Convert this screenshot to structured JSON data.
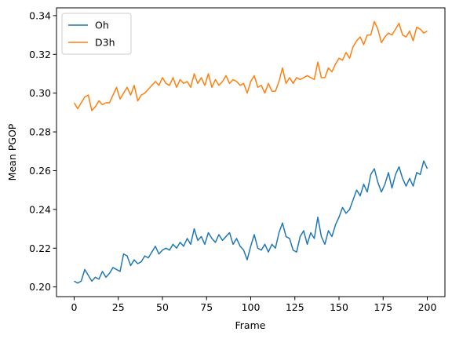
{
  "chart_data": {
    "type": "line",
    "x_label": "Frame",
    "y_label": "Mean PGOP",
    "x": [
      0,
      2,
      4,
      6,
      8,
      10,
      12,
      14,
      16,
      18,
      20,
      22,
      24,
      26,
      28,
      30,
      32,
      34,
      36,
      38,
      40,
      42,
      44,
      46,
      48,
      50,
      52,
      54,
      56,
      58,
      60,
      62,
      64,
      66,
      68,
      70,
      72,
      74,
      76,
      78,
      80,
      82,
      84,
      86,
      88,
      90,
      92,
      94,
      96,
      98,
      100,
      102,
      104,
      106,
      108,
      110,
      112,
      114,
      116,
      118,
      120,
      122,
      124,
      126,
      128,
      130,
      132,
      134,
      136,
      138,
      140,
      142,
      144,
      146,
      148,
      150,
      152,
      154,
      156,
      158,
      160,
      162,
      164,
      166,
      168,
      170,
      172,
      174,
      176,
      178,
      180,
      182,
      184,
      186,
      188,
      190,
      192,
      194,
      196,
      198,
      200
    ],
    "series": [
      {
        "name": "Oh",
        "color": "#1f77b4",
        "values": [
          0.203,
          0.202,
          0.203,
          0.209,
          0.206,
          0.203,
          0.205,
          0.204,
          0.208,
          0.205,
          0.207,
          0.21,
          0.209,
          0.208,
          0.217,
          0.216,
          0.211,
          0.214,
          0.212,
          0.213,
          0.216,
          0.215,
          0.218,
          0.221,
          0.217,
          0.219,
          0.22,
          0.219,
          0.222,
          0.22,
          0.223,
          0.221,
          0.225,
          0.222,
          0.23,
          0.224,
          0.226,
          0.222,
          0.228,
          0.225,
          0.223,
          0.227,
          0.224,
          0.226,
          0.228,
          0.222,
          0.225,
          0.221,
          0.219,
          0.214,
          0.221,
          0.227,
          0.22,
          0.219,
          0.222,
          0.218,
          0.222,
          0.22,
          0.228,
          0.233,
          0.226,
          0.225,
          0.219,
          0.218,
          0.226,
          0.229,
          0.222,
          0.228,
          0.225,
          0.236,
          0.226,
          0.222,
          0.229,
          0.226,
          0.232,
          0.236,
          0.241,
          0.238,
          0.24,
          0.245,
          0.25,
          0.247,
          0.253,
          0.249,
          0.258,
          0.261,
          0.254,
          0.249,
          0.253,
          0.259,
          0.251,
          0.258,
          0.262,
          0.256,
          0.252,
          0.256,
          0.252,
          0.259,
          0.258,
          0.265,
          0.261
        ]
      },
      {
        "name": "D3h",
        "color": "#ff7f0e",
        "values": [
          0.295,
          0.292,
          0.295,
          0.298,
          0.299,
          0.291,
          0.293,
          0.296,
          0.294,
          0.295,
          0.295,
          0.299,
          0.303,
          0.297,
          0.3,
          0.303,
          0.299,
          0.304,
          0.296,
          0.299,
          0.3,
          0.302,
          0.304,
          0.306,
          0.304,
          0.308,
          0.305,
          0.304,
          0.308,
          0.303,
          0.307,
          0.305,
          0.306,
          0.303,
          0.31,
          0.305,
          0.308,
          0.304,
          0.31,
          0.303,
          0.307,
          0.304,
          0.306,
          0.309,
          0.305,
          0.307,
          0.306,
          0.304,
          0.305,
          0.3,
          0.306,
          0.309,
          0.303,
          0.304,
          0.3,
          0.305,
          0.301,
          0.301,
          0.306,
          0.313,
          0.305,
          0.308,
          0.305,
          0.308,
          0.307,
          0.308,
          0.309,
          0.308,
          0.307,
          0.316,
          0.308,
          0.308,
          0.313,
          0.311,
          0.315,
          0.318,
          0.317,
          0.321,
          0.318,
          0.324,
          0.327,
          0.329,
          0.325,
          0.33,
          0.33,
          0.337,
          0.333,
          0.326,
          0.329,
          0.331,
          0.33,
          0.333,
          0.336,
          0.33,
          0.329,
          0.332,
          0.327,
          0.334,
          0.333,
          0.331,
          0.332
        ]
      }
    ],
    "xlim": [
      -10,
      210
    ],
    "ylim": [
      0.195,
      0.344
    ],
    "xticks": [
      0,
      25,
      50,
      75,
      100,
      125,
      150,
      175,
      200
    ],
    "yticks": [
      {
        "value": 0.2,
        "label": "0.20"
      },
      0.22,
      0.24,
      0.26,
      0.28,
      {
        "value": 0.3,
        "label": "0.30"
      },
      0.32,
      0.34
    ],
    "legend": "upper left",
    "grid": false
  }
}
